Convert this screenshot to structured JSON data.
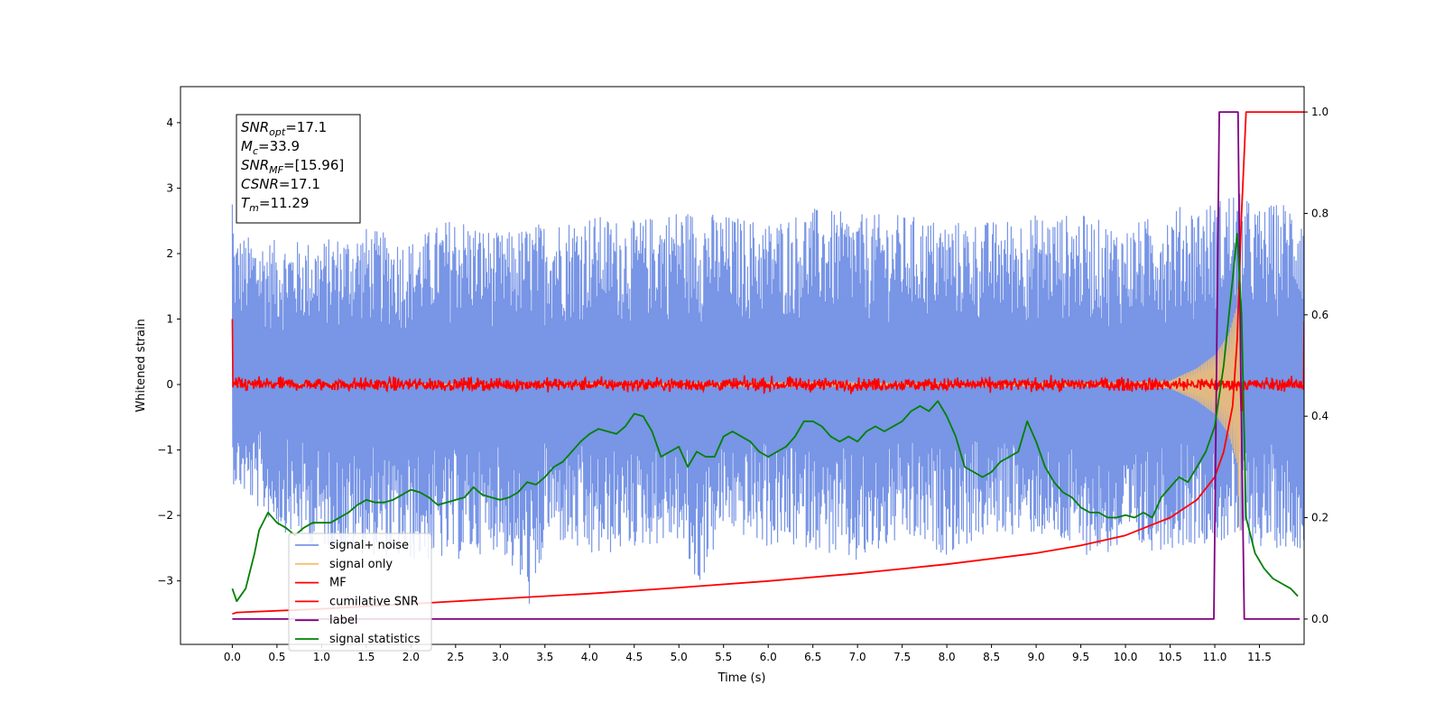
{
  "chart_data": {
    "type": "line",
    "title": "",
    "xlabel": "Time (s)",
    "ylabel": "Whitened strain",
    "xlim": [
      -0.58,
      12.0
    ],
    "ylim": [
      -3.97,
      4.55
    ],
    "y2lim": [
      -0.05,
      1.05
    ],
    "xticks": [
      0.0,
      0.5,
      1.0,
      1.5,
      2.0,
      2.5,
      3.0,
      3.5,
      4.0,
      4.5,
      5.0,
      5.5,
      6.0,
      6.5,
      7.0,
      7.5,
      8.0,
      8.5,
      9.0,
      9.5,
      10.0,
      10.5,
      11.0,
      11.5
    ],
    "xtick_labels": [
      "0.0",
      "0.5",
      "1.0",
      "1.5",
      "2.0",
      "2.5",
      "3.0",
      "3.5",
      "4.0",
      "4.5",
      "5.0",
      "5.5",
      "6.0",
      "6.5",
      "7.0",
      "7.5",
      "8.0",
      "8.5",
      "9.0",
      "9.5",
      "10.0",
      "10.5",
      "11.0",
      "11.5"
    ],
    "yticks": [
      -3,
      -2,
      -1,
      0,
      1,
      2,
      3,
      4
    ],
    "ytick_labels": [
      "−3",
      "−2",
      "−1",
      "0",
      "1",
      "2",
      "3",
      "4"
    ],
    "y2ticks": [
      0.0,
      0.2,
      0.4,
      0.6,
      0.8,
      1.0
    ],
    "y2tick_labels": [
      "0.0",
      "0.2",
      "0.4",
      "0.6",
      "0.8",
      "1.0"
    ],
    "annotation": {
      "lines": [
        {
          "sym": "SNR",
          "sub": "opt",
          "val": "=17.1"
        },
        {
          "sym": "M",
          "sub": "c",
          "val": "=33.9"
        },
        {
          "sym": "SNR",
          "sub": "MF",
          "val": "=[15.96]"
        },
        {
          "sym": "CSNR",
          "sub": "",
          "val": "=17.1"
        },
        {
          "sym": "T",
          "sub": "m",
          "val": "=11.29"
        }
      ]
    },
    "legend": {
      "placement": "lower-left",
      "entries": [
        {
          "name": "signal+ noise",
          "color": "#7895e6"
        },
        {
          "name": "signal only",
          "color": "#f5c070"
        },
        {
          "name": "MF",
          "color": "#ff0000"
        },
        {
          "name": "cumilative SNR",
          "color": "#ff0000"
        },
        {
          "name": "label",
          "color": "#800080"
        },
        {
          "name": "signal statistics",
          "color": "#008000"
        }
      ]
    },
    "series": [
      {
        "name": "signal+ noise",
        "axis": "left",
        "color": "#7895e6",
        "style": "noise-band",
        "x_range": [
          0.0,
          12.0
        ],
        "upper_envelope": {
          "x": [
            0.0,
            0.02,
            0.5,
            1.0,
            1.5,
            2.0,
            2.5,
            3.0,
            3.5,
            4.0,
            4.5,
            5.0,
            5.5,
            6.0,
            6.5,
            7.0,
            7.5,
            8.0,
            8.5,
            9.0,
            9.5,
            10.0,
            10.5,
            11.0,
            11.2,
            11.5,
            12.0
          ],
          "y": [
            3.3,
            2.3,
            2.2,
            2.2,
            2.4,
            2.2,
            2.6,
            2.3,
            2.5,
            2.6,
            2.5,
            2.7,
            2.6,
            2.5,
            2.7,
            2.6,
            2.6,
            2.5,
            2.5,
            2.6,
            2.6,
            2.4,
            2.7,
            2.8,
            3.0,
            2.7,
            2.9
          ]
        },
        "lower_envelope": {
          "x": [
            0.0,
            0.5,
            1.0,
            1.5,
            2.0,
            2.5,
            3.0,
            3.4,
            3.5,
            4.0,
            4.5,
            5.0,
            5.2,
            5.5,
            6.0,
            6.5,
            7.0,
            7.5,
            8.0,
            8.5,
            9.0,
            9.5,
            10.0,
            10.5,
            11.0,
            11.5,
            12.0
          ],
          "y": [
            -1.5,
            -2.2,
            -2.5,
            -2.6,
            -2.7,
            -2.7,
            -2.5,
            -3.6,
            -2.3,
            -2.7,
            -2.5,
            -2.4,
            -3.2,
            -2.2,
            -2.5,
            -2.5,
            -2.8,
            -2.4,
            -2.6,
            -2.3,
            -2.3,
            -2.6,
            -2.6,
            -2.5,
            -2.4,
            -2.5,
            -2.5
          ]
        }
      },
      {
        "name": "signal only",
        "axis": "left",
        "color": "#f5c070",
        "style": "chirp",
        "x": [
          0.0,
          10.0,
          10.5,
          10.8,
          11.0,
          11.15,
          11.25,
          11.29
        ],
        "amplitude": [
          0.0,
          0.03,
          0.06,
          0.25,
          0.45,
          0.75,
          1.2,
          2.5
        ]
      },
      {
        "name": "MF",
        "axis": "left",
        "color": "#ff0000",
        "style": "noise-band",
        "x_range": [
          0.0,
          12.0
        ],
        "base": 0.0,
        "amplitude": 0.12,
        "edge_spikes": [
          {
            "x": 0.0,
            "y": 1.0
          },
          {
            "x": 11.3,
            "y": -0.4
          },
          {
            "x": 12.0,
            "y": 0.97
          }
        ]
      },
      {
        "name": "cumilative SNR",
        "axis": "right",
        "x": [
          0.0,
          0.05,
          1.0,
          2.0,
          3.0,
          4.0,
          5.0,
          6.0,
          7.0,
          8.0,
          9.0,
          9.5,
          10.0,
          10.5,
          10.8,
          11.0,
          11.1,
          11.2,
          11.25,
          11.3,
          11.35,
          12.0
        ],
        "y": [
          0.01,
          0.013,
          0.02,
          0.03,
          0.04,
          0.05,
          0.062,
          0.075,
          0.09,
          0.108,
          0.13,
          0.145,
          0.165,
          0.2,
          0.235,
          0.28,
          0.33,
          0.42,
          0.55,
          0.8,
          1.0,
          1.0
        ]
      },
      {
        "name": "label",
        "axis": "right",
        "x": [
          0.0,
          10.99,
          11.05,
          11.26,
          11.29,
          11.33,
          11.35,
          11.95
        ],
        "y": [
          0.0,
          0.0,
          1.0,
          1.0,
          0.5,
          0.0,
          0.0,
          0.0
        ]
      },
      {
        "name": "signal statistics",
        "axis": "right",
        "x": [
          0.0,
          0.05,
          0.15,
          0.25,
          0.3,
          0.4,
          0.5,
          0.6,
          0.7,
          0.8,
          0.9,
          1.0,
          1.1,
          1.2,
          1.3,
          1.4,
          1.5,
          1.6,
          1.7,
          1.8,
          1.9,
          2.0,
          2.1,
          2.2,
          2.3,
          2.4,
          2.5,
          2.6,
          2.7,
          2.8,
          2.9,
          3.0,
          3.1,
          3.2,
          3.3,
          3.4,
          3.5,
          3.6,
          3.7,
          3.8,
          3.9,
          4.0,
          4.1,
          4.2,
          4.3,
          4.4,
          4.5,
          4.6,
          4.7,
          4.8,
          4.9,
          5.0,
          5.1,
          5.2,
          5.3,
          5.4,
          5.5,
          5.6,
          5.7,
          5.8,
          5.9,
          6.0,
          6.1,
          6.2,
          6.3,
          6.4,
          6.5,
          6.6,
          6.7,
          6.8,
          6.9,
          7.0,
          7.1,
          7.2,
          7.3,
          7.4,
          7.5,
          7.6,
          7.7,
          7.8,
          7.9,
          8.0,
          8.1,
          8.2,
          8.3,
          8.4,
          8.5,
          8.6,
          8.7,
          8.8,
          8.9,
          9.0,
          9.1,
          9.2,
          9.3,
          9.4,
          9.5,
          9.6,
          9.7,
          9.8,
          9.9,
          10.0,
          10.1,
          10.2,
          10.3,
          10.4,
          10.5,
          10.6,
          10.7,
          10.8,
          10.9,
          11.0,
          11.1,
          11.2,
          11.25,
          11.3,
          11.35,
          11.45,
          11.55,
          11.65,
          11.75,
          11.85,
          11.93
        ],
        "y": [
          0.06,
          0.035,
          0.06,
          0.13,
          0.175,
          0.21,
          0.19,
          0.18,
          0.165,
          0.18,
          0.19,
          0.19,
          0.19,
          0.2,
          0.21,
          0.225,
          0.235,
          0.23,
          0.23,
          0.235,
          0.245,
          0.255,
          0.25,
          0.24,
          0.225,
          0.23,
          0.235,
          0.24,
          0.26,
          0.245,
          0.24,
          0.235,
          0.24,
          0.25,
          0.27,
          0.265,
          0.28,
          0.3,
          0.31,
          0.33,
          0.35,
          0.365,
          0.375,
          0.37,
          0.365,
          0.38,
          0.405,
          0.4,
          0.37,
          0.32,
          0.33,
          0.34,
          0.3,
          0.33,
          0.32,
          0.32,
          0.36,
          0.37,
          0.36,
          0.35,
          0.33,
          0.32,
          0.33,
          0.34,
          0.36,
          0.39,
          0.39,
          0.38,
          0.36,
          0.35,
          0.36,
          0.35,
          0.37,
          0.38,
          0.37,
          0.38,
          0.39,
          0.41,
          0.42,
          0.41,
          0.43,
          0.4,
          0.36,
          0.3,
          0.29,
          0.28,
          0.29,
          0.31,
          0.32,
          0.33,
          0.39,
          0.35,
          0.3,
          0.27,
          0.25,
          0.24,
          0.22,
          0.21,
          0.21,
          0.2,
          0.2,
          0.205,
          0.2,
          0.21,
          0.2,
          0.24,
          0.26,
          0.28,
          0.27,
          0.3,
          0.33,
          0.38,
          0.5,
          0.67,
          0.76,
          0.6,
          0.2,
          0.13,
          0.1,
          0.08,
          0.07,
          0.06,
          0.045
        ]
      }
    ]
  }
}
